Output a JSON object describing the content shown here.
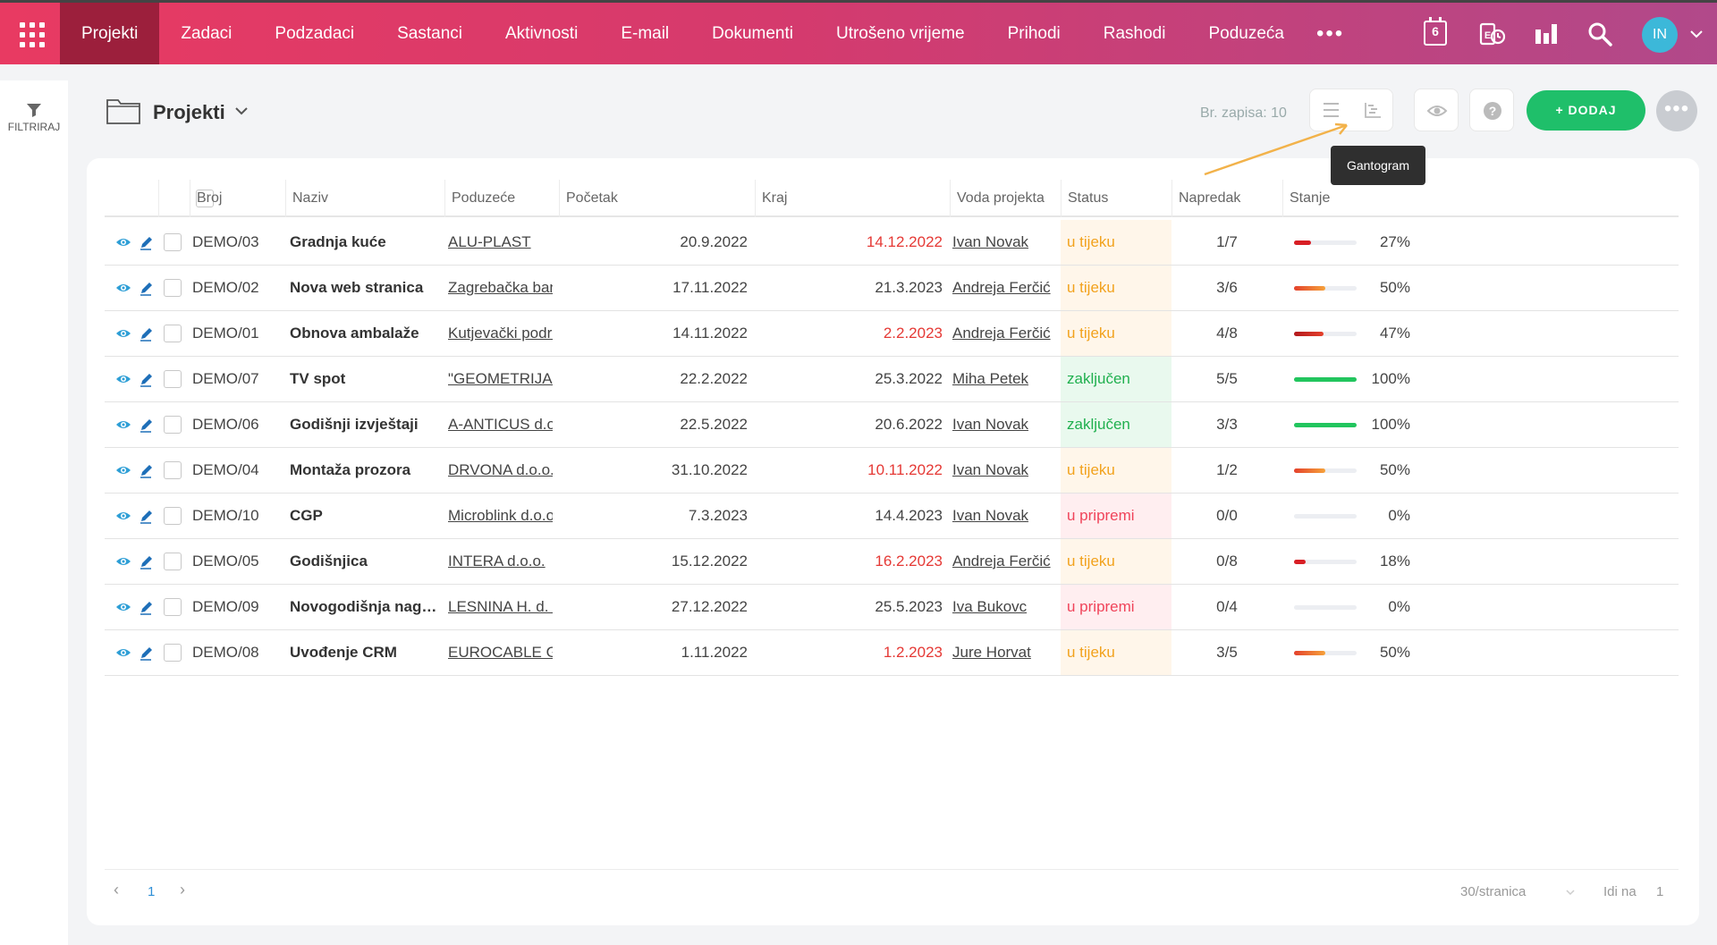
{
  "nav": {
    "items": [
      "Projekti",
      "Zadaci",
      "Podzadaci",
      "Sastanci",
      "Aktivnosti",
      "E-mail",
      "Dokumenti",
      "Utrošeno vrijeme",
      "Prihodi",
      "Rashodi",
      "Poduzeća"
    ],
    "active": "Projekti",
    "more": "•••",
    "calendar_day": "6",
    "avatar_initials": "IN"
  },
  "sidebar": {
    "filter_label": "FILTRIRAJ"
  },
  "header": {
    "title": "Projekti",
    "record_count": "Br. zapisa: 10",
    "add_label": "+ DODAJ",
    "tooltip": "Gantogram"
  },
  "table": {
    "columns": [
      "Broj",
      "Naziv",
      "Poduzeće",
      "Početak",
      "Kraj",
      "Voda projekta",
      "Status",
      "Napredak",
      "Stanje"
    ],
    "rows": [
      {
        "broj": "DEMO/03",
        "naziv": "Gradnja kuće",
        "poduzece": "ALU-PLAST",
        "pocetak": "20.9.2022",
        "kraj": "14.12.2022",
        "kraj_overdue": true,
        "voda": "Ivan Novak",
        "status": "u tijeku",
        "status_type": "wait",
        "napredak": "1/7",
        "stanje": "27%",
        "stanje_value": 0.27
      },
      {
        "broj": "DEMO/02",
        "naziv": "Nova web stranica",
        "poduzece": "Zagrebačka bank",
        "pocetak": "17.11.2022",
        "kraj": "21.3.2023",
        "kraj_overdue": false,
        "voda": "Andreja Ferčić",
        "status": "u tijeku",
        "status_type": "wait",
        "napredak": "3/6",
        "stanje": "50%",
        "stanje_value": 0.5
      },
      {
        "broj": "DEMO/01",
        "naziv": "Obnova ambalaže",
        "poduzece": "Kutjevački podru",
        "pocetak": "14.11.2022",
        "kraj": "2.2.2023",
        "kraj_overdue": true,
        "voda": "Andreja Ferčić",
        "status": "u tijeku",
        "status_type": "wait",
        "napredak": "4/8",
        "stanje": "47%",
        "stanje_value": 0.47
      },
      {
        "broj": "DEMO/07",
        "naziv": "TV spot",
        "poduzece": "\"GEOMETRIJA\"",
        "pocetak": "22.2.2022",
        "kraj": "25.3.2022",
        "kraj_overdue": false,
        "voda": "Miha Petek",
        "status": "zaključen",
        "status_type": "done",
        "napredak": "5/5",
        "stanje": "100%",
        "stanje_value": 1.0
      },
      {
        "broj": "DEMO/06",
        "naziv": "Godišnji izvještaji",
        "poduzece": "A-ANTICUS d.o.o",
        "pocetak": "22.5.2022",
        "kraj": "20.6.2022",
        "kraj_overdue": false,
        "voda": "Ivan Novak",
        "status": "zaključen",
        "status_type": "done",
        "napredak": "3/3",
        "stanje": "100%",
        "stanje_value": 1.0
      },
      {
        "broj": "DEMO/04",
        "naziv": "Montaža prozora",
        "poduzece": "DRVONA d.o.o.",
        "pocetak": "31.10.2022",
        "kraj": "10.11.2022",
        "kraj_overdue": true,
        "voda": "Ivan Novak",
        "status": "u tijeku",
        "status_type": "wait",
        "napredak": "1/2",
        "stanje": "50%",
        "stanje_value": 0.5
      },
      {
        "broj": "DEMO/10",
        "naziv": "CGP",
        "poduzece": "Microblink d.o.o.",
        "pocetak": "7.3.2023",
        "kraj": "14.4.2023",
        "kraj_overdue": false,
        "voda": "Ivan Novak",
        "status": "u pripremi",
        "status_type": "prep",
        "napredak": "0/0",
        "stanje": "0%",
        "stanje_value": 0
      },
      {
        "broj": "DEMO/05",
        "naziv": "Godišnjica",
        "poduzece": "INTERA d.o.o.",
        "pocetak": "15.12.2022",
        "kraj": "16.2.2023",
        "kraj_overdue": true,
        "voda": "Andreja Ferčić",
        "status": "u tijeku",
        "status_type": "wait",
        "napredak": "0/8",
        "stanje": "18%",
        "stanje_value": 0.18
      },
      {
        "broj": "DEMO/09",
        "naziv": "Novogodišnja nagrad...",
        "poduzece": "LESNINA H. d. o.",
        "pocetak": "27.12.2022",
        "kraj": "25.5.2023",
        "kraj_overdue": false,
        "voda": "Iva Bukovc",
        "status": "u pripremi",
        "status_type": "prep",
        "napredak": "0/4",
        "stanje": "0%",
        "stanje_value": 0
      },
      {
        "broj": "DEMO/08",
        "naziv": "Uvođenje CRM",
        "poduzece": "EUROCABLE GR(",
        "pocetak": "1.11.2022",
        "kraj": "1.2.2023",
        "kraj_overdue": true,
        "voda": "Jure Horvat",
        "status": "u tijeku",
        "status_type": "wait",
        "napredak": "3/5",
        "stanje": "50%",
        "stanje_value": 0.5
      }
    ]
  },
  "pagination": {
    "prev": "‹",
    "current": "1",
    "next": "›",
    "per_page": "30/stranica",
    "goto_label": "Idi na",
    "goto_value": "1"
  },
  "colors": {
    "accent": "#1fbf6a",
    "nav_start": "#e83a62",
    "nav_end": "#b1498a",
    "overdue": "#e53935"
  }
}
